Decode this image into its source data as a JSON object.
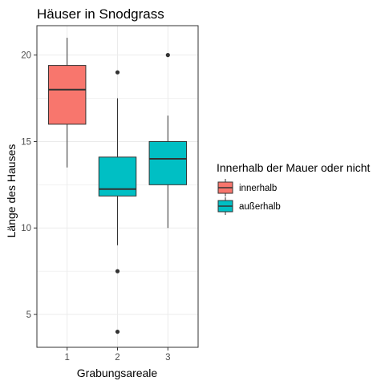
{
  "chart_data": {
    "type": "boxplot",
    "title": "Häuser in Snodgrass",
    "xlabel": "Grabungsareale",
    "ylabel": "Länge des Hauses",
    "categories": [
      "1",
      "2",
      "3"
    ],
    "ylim": [
      3,
      22
    ],
    "yticks": [
      5,
      10,
      15,
      20
    ],
    "grid": true,
    "legend": {
      "title": "Innerhalb der Mauer oder nicht",
      "position": "right",
      "items": [
        {
          "label": "innerhalb",
          "color": "#F8766D"
        },
        {
          "label": "außerhalb",
          "color": "#00BFC4"
        }
      ]
    },
    "boxes": [
      {
        "category": "1",
        "group": "innerhalb",
        "color": "#F8766D",
        "min": 13.5,
        "q1": 16.0,
        "median": 18.0,
        "q3": 19.4,
        "max": 21.0,
        "outliers": []
      },
      {
        "category": "2",
        "group": "außerhalb",
        "color": "#00BFC4",
        "min": 9.0,
        "q1": 11.85,
        "median": 12.25,
        "q3": 14.1,
        "max": 17.5,
        "outliers": [
          19.0,
          7.5,
          4.0
        ]
      },
      {
        "category": "3",
        "group": "außerhalb",
        "color": "#00BFC4",
        "min": 10.0,
        "q1": 12.5,
        "median": 14.0,
        "q3": 15.0,
        "max": 16.5,
        "outliers": [
          20.0
        ]
      }
    ]
  }
}
